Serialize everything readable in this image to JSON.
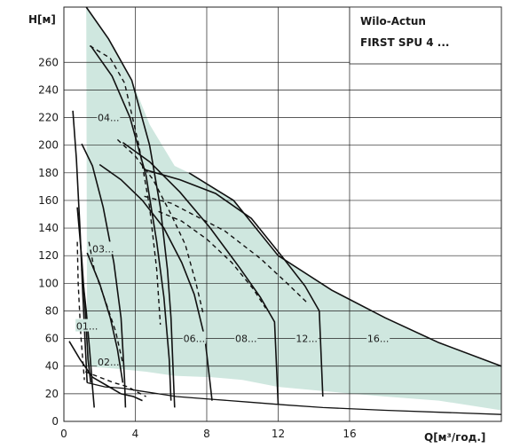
{
  "chart_data": {
    "type": "line",
    "title": [
      "Wilo-Actun",
      "FIRST SPU 4 ..."
    ],
    "xlabel": "Q[м³/год.]",
    "ylabel": "H[м]",
    "xlim": [
      0,
      24.5
    ],
    "ylim": [
      0,
      300
    ],
    "x_ticks": [
      0,
      4,
      8,
      12,
      16
    ],
    "y_ticks": [
      0,
      20,
      40,
      60,
      80,
      100,
      120,
      140,
      160,
      180,
      200,
      220,
      240,
      260
    ],
    "grid": true,
    "envelope_color": "#cfe7df",
    "series": [
      {
        "name": "01...",
        "style": "solid",
        "curves": [
          [
            [
              0.5,
              225
            ],
            [
              0.7,
              190
            ],
            [
              0.9,
              140
            ],
            [
              1.05,
              95
            ],
            [
              1.2,
              55
            ],
            [
              1.3,
              28
            ]
          ],
          [
            [
              0.75,
              155
            ],
            [
              1.0,
              118
            ],
            [
              1.2,
              80
            ],
            [
              1.35,
              45
            ],
            [
              1.5,
              28
            ]
          ],
          [
            [
              1.0,
              110
            ],
            [
              1.25,
              80
            ],
            [
              1.45,
              50
            ],
            [
              1.6,
              25
            ],
            [
              1.7,
              10
            ]
          ]
        ],
        "dashed": [
          [
            [
              0.75,
              130
            ],
            [
              0.8,
              100
            ],
            [
              0.95,
              62
            ],
            [
              1.15,
              30
            ]
          ]
        ],
        "label_pos": [
          1.3,
          69
        ]
      },
      {
        "name": "02...",
        "style": "solid",
        "curves": [
          [
            [
              0.3,
              58
            ],
            [
              0.9,
              45
            ],
            [
              1.6,
              32
            ],
            [
              2.4,
              26
            ],
            [
              3.2,
              20
            ],
            [
              3.9,
              18
            ],
            [
              4.4,
              15
            ]
          ]
        ],
        "dashed": [
          [
            [
              1.2,
              36
            ],
            [
              2.0,
              32
            ],
            [
              2.8,
              28
            ],
            [
              3.6,
              25
            ],
            [
              4.0,
              22
            ],
            [
              4.6,
              18
            ]
          ]
        ],
        "label_pos": [
          2.5,
          43
        ]
      },
      {
        "name": "03...",
        "style": "solid",
        "curves": [
          [
            [
              1.0,
              201
            ],
            [
              1.6,
              185
            ],
            [
              2.2,
              155
            ],
            [
              2.8,
              115
            ],
            [
              3.2,
              75
            ],
            [
              3.4,
              30
            ],
            [
              3.45,
              10
            ]
          ],
          [
            [
              1.3,
              122
            ],
            [
              2.0,
              100
            ],
            [
              2.6,
              75
            ],
            [
              3.0,
              52
            ],
            [
              3.3,
              28
            ]
          ]
        ],
        "dashed": [
          [
            [
              1.4,
              130
            ],
            [
              1.7,
              110
            ],
            [
              2.3,
              88
            ],
            [
              2.9,
              65
            ],
            [
              3.3,
              42
            ]
          ]
        ],
        "label_pos": [
          2.2,
          125
        ]
      },
      {
        "name": "04...",
        "style": "solid",
        "curves": [
          [
            [
              1.25,
              300
            ],
            [
              2.5,
              277
            ],
            [
              3.8,
              247
            ],
            [
              4.8,
              200
            ],
            [
              5.4,
              155
            ],
            [
              5.8,
              110
            ],
            [
              6.0,
              75
            ],
            [
              6.2,
              10
            ]
          ],
          [
            [
              1.5,
              272
            ],
            [
              2.7,
              250
            ],
            [
              3.7,
              220
            ],
            [
              4.6,
              178
            ],
            [
              5.2,
              130
            ],
            [
              5.6,
              90
            ],
            [
              5.9,
              45
            ],
            [
              6.0,
              15
            ]
          ]
        ],
        "dashed": [
          [
            [
              1.45,
              272
            ],
            [
              2.6,
              263
            ],
            [
              3.4,
              245
            ],
            [
              4.2,
              200
            ],
            [
              4.8,
              155
            ],
            [
              5.2,
              110
            ],
            [
              5.4,
              70
            ]
          ]
        ],
        "label_pos": [
          2.5,
          220
        ]
      },
      {
        "name": "06...",
        "style": "solid",
        "curves": [
          [
            [
              2.0,
              186
            ],
            [
              3.2,
              175
            ],
            [
              4.4,
              160
            ],
            [
              5.6,
              140
            ],
            [
              6.6,
              115
            ],
            [
              7.3,
              92
            ],
            [
              7.9,
              60
            ],
            [
              8.3,
              15
            ]
          ]
        ],
        "dashed": [
          [
            [
              3.0,
              204
            ],
            [
              4.0,
              192
            ],
            [
              5.0,
              175
            ],
            [
              6.0,
              150
            ],
            [
              6.8,
              128
            ],
            [
              7.4,
              100
            ],
            [
              7.8,
              78
            ]
          ]
        ],
        "label_pos": [
          7.3,
          60
        ]
      },
      {
        "name": "08...",
        "style": "solid",
        "curves": [
          [
            [
              3.3,
              202
            ],
            [
              4.8,
              188
            ],
            [
              6.5,
              166
            ],
            [
              8.2,
              140
            ],
            [
              9.8,
              112
            ],
            [
              11.0,
              90
            ],
            [
              11.8,
              72
            ],
            [
              12.0,
              12
            ]
          ]
        ],
        "dashed": [
          [
            [
              5.3,
              152
            ],
            [
              6.6,
              145
            ],
            [
              8.0,
              132
            ],
            [
              9.4,
              115
            ],
            [
              10.6,
              96
            ],
            [
              11.3,
              82
            ]
          ]
        ],
        "label_pos": [
          10.2,
          60
        ]
      },
      {
        "name": "12...",
        "style": "solid",
        "curves": [
          [
            [
              4.6,
              182
            ],
            [
              6.5,
              175
            ],
            [
              8.5,
              165
            ],
            [
              10.5,
              147
            ],
            [
              12.3,
              118
            ],
            [
              13.5,
              98
            ],
            [
              14.3,
              80
            ],
            [
              14.5,
              18
            ]
          ]
        ],
        "dashed": [
          [
            [
              4.5,
              163
            ],
            [
              6.0,
              158
            ],
            [
              7.5,
              148
            ],
            [
              9.0,
              138
            ],
            [
              11.0,
              118
            ],
            [
              12.5,
              100
            ],
            [
              13.7,
              85
            ]
          ]
        ],
        "label_pos": [
          13.6,
          60
        ]
      },
      {
        "name": "16...",
        "style": "solid",
        "curves": [
          [
            [
              7.0,
              180
            ],
            [
              9.5,
              160
            ],
            [
              12.0,
              120
            ],
            [
              15.0,
              95
            ],
            [
              18.0,
              75
            ],
            [
              21.0,
              57
            ],
            [
              24.5,
              40
            ]
          ]
        ],
        "dashed": [],
        "label_pos": [
          17.6,
          60
        ]
      }
    ],
    "envelope_polygon": [
      [
        1.25,
        300
      ],
      [
        2.5,
        277
      ],
      [
        3.8,
        247
      ],
      [
        4.8,
        215
      ],
      [
        6.2,
        185
      ],
      [
        7.0,
        180
      ],
      [
        9.5,
        160
      ],
      [
        12.0,
        120
      ],
      [
        15.0,
        95
      ],
      [
        18.0,
        75
      ],
      [
        21.0,
        57
      ],
      [
        24.5,
        40
      ],
      [
        24.5,
        8
      ],
      [
        21.0,
        15
      ],
      [
        18.0,
        18
      ],
      [
        14.5,
        22
      ],
      [
        12.0,
        25
      ],
      [
        10.0,
        30
      ],
      [
        8.3,
        32
      ],
      [
        6.2,
        33
      ],
      [
        4.6,
        36
      ],
      [
        3.0,
        38
      ],
      [
        1.3,
        40
      ],
      [
        1.25,
        300
      ]
    ],
    "envelope_bottom": [
      [
        1.3,
        28
      ],
      [
        2.3,
        25
      ],
      [
        3.3,
        24
      ],
      [
        4.3,
        22
      ],
      [
        5.3,
        20
      ],
      [
        6.3,
        18
      ],
      [
        8.3,
        16
      ],
      [
        10.3,
        14
      ],
      [
        12.3,
        12
      ],
      [
        14.5,
        10
      ],
      [
        18.0,
        8
      ],
      [
        24.5,
        5
      ]
    ]
  }
}
